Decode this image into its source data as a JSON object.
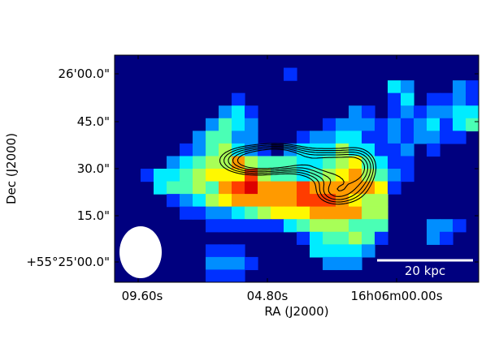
{
  "chart_data": {
    "type": "heatmap",
    "colormap": "jet",
    "title": "",
    "xlabel": "RA (J2000)",
    "ylabel": "Dec (J2000)",
    "x_ticks": [
      "09.60s",
      "04.80s",
      "16h06m00.00s"
    ],
    "y_ticks": [
      "26'00.0\"",
      "45.0\"",
      "30.0\"",
      "15.0\"",
      "+55°25'00.0\""
    ],
    "scale_bar": {
      "label": "20 kpc",
      "color": "#ffffff"
    },
    "beam": {
      "color": "#ffffff"
    },
    "contour_color": "#000000",
    "contour_levels": [
      0.42,
      0.52,
      0.63,
      0.75,
      0.87
    ],
    "grid": false,
    "pixel_grid": {
      "columns": 28,
      "rows": 18
    },
    "intensity": [
      "0000000000000000000000000000",
      "0000000000000100000000000000",
      "0000000000000000000003200021",
      "0000000001000000000001301121",
      "0000000023100000002101212233",
      "0000000243200000122212123134",
      "0000002442200012233112122110",
      "0000012453210233353311201000",
      "0000234557544433456431100000",
      "0013345666854434567542100000",
      "0003445478977787777761000000",
      "0000123567777788876550000000",
      "0000011223456667777550000000",
      "0000000111111345554440002210",
      "0000000000000013445410002100",
      "0000000111000003333200000000",
      "0000000222100000222000000000",
      "0000000111000000000000000000"
    ]
  }
}
